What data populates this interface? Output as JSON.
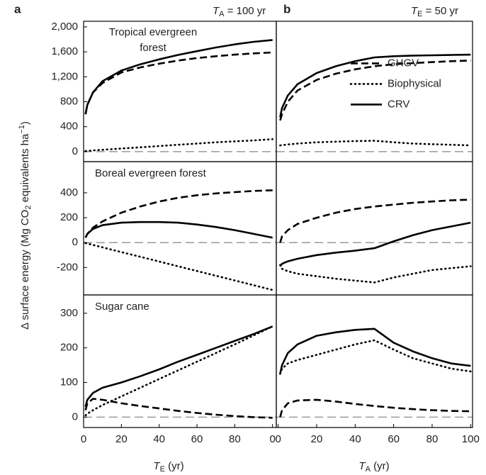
{
  "figure": {
    "panel_a": "a",
    "panel_b": "b",
    "header_a": {
      "var": "T",
      "sub": "A",
      "rest": " = 100 yr"
    },
    "header_b": {
      "var": "T",
      "sub": "E",
      "rest": " = 50 yr"
    },
    "ylabel": {
      "pre": "Δ surface energy (Mg CO",
      "sub": "2",
      "mid": " equivalents ha",
      "sup": "−1",
      "post": ")"
    },
    "xlabel_a": {
      "var": "T",
      "sub": "E",
      "rest": " (yr)"
    },
    "xlabel_b": {
      "var": "T",
      "sub": "A",
      "rest": " (yr)"
    }
  },
  "chart_data": [
    {
      "type": "line",
      "title": [
        "Tropical evergreen",
        "forest"
      ],
      "xlim": [
        0,
        102
      ],
      "ylim": [
        -160,
        2090
      ],
      "yticks": [
        0,
        400,
        800,
        {
          "value": 1200,
          "label": "1,200"
        },
        {
          "value": 1600,
          "label": "1,600"
        },
        {
          "value": 2000,
          "label": "2,000"
        }
      ],
      "x": [
        1,
        2,
        5,
        10,
        20,
        30,
        40,
        50,
        60,
        70,
        80,
        90,
        100
      ],
      "series": [
        {
          "name": "GHGV",
          "color": "#000000",
          "dash": "dashed",
          "values": [
            600,
            750,
            950,
            1100,
            1270,
            1350,
            1410,
            1460,
            1500,
            1530,
            1555,
            1575,
            1590
          ]
        },
        {
          "name": "Biophysical",
          "color": "#000000",
          "dash": "dotted",
          "values": [
            10,
            12,
            20,
            30,
            50,
            70,
            90,
            110,
            130,
            150,
            165,
            180,
            200
          ]
        },
        {
          "name": "CRV",
          "color": "#000000",
          "dash": "solid",
          "values": [
            600,
            750,
            950,
            1130,
            1300,
            1400,
            1480,
            1550,
            1610,
            1670,
            1720,
            1760,
            1790
          ]
        }
      ]
    },
    {
      "type": "line",
      "xlim": [
        -1,
        101
      ],
      "ylim": [
        -160,
        2090
      ],
      "legend": "center right",
      "x": [
        1,
        2,
        5,
        10,
        20,
        30,
        40,
        50,
        60,
        70,
        80,
        90,
        100
      ],
      "series": [
        {
          "name": "GHGV",
          "color": "#000000",
          "dash": "dashed",
          "values": [
            500,
            600,
            800,
            980,
            1150,
            1250,
            1320,
            1370,
            1400,
            1420,
            1435,
            1450,
            1460
          ]
        },
        {
          "name": "Biophysical",
          "color": "#000000",
          "dash": "dotted",
          "values": [
            100,
            105,
            115,
            130,
            150,
            160,
            170,
            175,
            150,
            130,
            120,
            110,
            100
          ]
        },
        {
          "name": "CRV",
          "color": "#000000",
          "dash": "solid",
          "values": [
            550,
            700,
            900,
            1080,
            1260,
            1370,
            1450,
            1510,
            1530,
            1540,
            1545,
            1550,
            1555
          ]
        }
      ]
    },
    {
      "type": "line",
      "title": [
        "Boreal evergreen forest"
      ],
      "xlim": [
        0,
        102
      ],
      "ylim": [
        -420,
        650
      ],
      "yticks": [
        -200,
        0,
        200,
        400
      ],
      "x": [
        1,
        2,
        5,
        10,
        20,
        30,
        40,
        50,
        60,
        70,
        80,
        90,
        100
      ],
      "series": [
        {
          "name": "GHGV",
          "color": "#000000",
          "dash": "dashed",
          "values": [
            40,
            70,
            120,
            170,
            240,
            290,
            330,
            360,
            380,
            395,
            405,
            415,
            420
          ]
        },
        {
          "name": "Biophysical",
          "color": "#000000",
          "dash": "dotted",
          "values": [
            -4,
            -8,
            -19,
            -38,
            -76,
            -114,
            -152,
            -190,
            -228,
            -266,
            -304,
            -342,
            -380
          ]
        },
        {
          "name": "CRV",
          "color": "#000000",
          "dash": "solid",
          "values": [
            40,
            70,
            110,
            140,
            160,
            165,
            165,
            160,
            145,
            125,
            100,
            70,
            40
          ]
        }
      ]
    },
    {
      "type": "line",
      "xlim": [
        -1,
        101
      ],
      "ylim": [
        -420,
        650
      ],
      "x": [
        1,
        2,
        5,
        10,
        20,
        30,
        40,
        50,
        60,
        70,
        80,
        90,
        100
      ],
      "series": [
        {
          "name": "GHGV",
          "color": "#000000",
          "dash": "dashed",
          "values": [
            0,
            50,
            100,
            150,
            200,
            240,
            270,
            290,
            305,
            320,
            330,
            340,
            345
          ]
        },
        {
          "name": "Biophysical",
          "color": "#000000",
          "dash": "dotted",
          "values": [
            -180,
            -210,
            -230,
            -250,
            -270,
            -290,
            -305,
            -320,
            -280,
            -250,
            -220,
            -205,
            -190
          ]
        },
        {
          "name": "CRV",
          "color": "#000000",
          "dash": "solid",
          "values": [
            -190,
            -170,
            -150,
            -130,
            -100,
            -80,
            -65,
            -45,
            10,
            60,
            100,
            130,
            160
          ]
        }
      ]
    },
    {
      "type": "line",
      "title": [
        "Sugar cane"
      ],
      "xlim": [
        0,
        102
      ],
      "ylim": [
        -30,
        353
      ],
      "yticks": [
        0,
        100,
        200,
        300
      ],
      "xticks": [
        0,
        20,
        40,
        60,
        80,
        {
          "value": 100,
          "label": "0"
        }
      ],
      "x": [
        1,
        2,
        5,
        10,
        20,
        30,
        40,
        50,
        60,
        70,
        80,
        90,
        100
      ],
      "series": [
        {
          "name": "GHGV",
          "color": "#000000",
          "dash": "dashed",
          "values": [
            20,
            40,
            53,
            50,
            40,
            32,
            25,
            18,
            12,
            7,
            3,
            0,
            -2
          ]
        },
        {
          "name": "Biophysical",
          "color": "#000000",
          "dash": "dotted",
          "values": [
            5,
            10,
            20,
            35,
            60,
            85,
            110,
            135,
            160,
            185,
            210,
            236,
            262
          ]
        },
        {
          "name": "CRV",
          "color": "#000000",
          "dash": "solid",
          "values": [
            30,
            50,
            70,
            85,
            100,
            118,
            138,
            160,
            180,
            200,
            220,
            240,
            262
          ]
        }
      ]
    },
    {
      "type": "line",
      "xlim": [
        -1,
        101
      ],
      "ylim": [
        -30,
        353
      ],
      "xticks": [
        0,
        20,
        40,
        60,
        80,
        100
      ],
      "x": [
        1,
        2,
        5,
        10,
        20,
        30,
        40,
        50,
        60,
        70,
        80,
        90,
        100
      ],
      "series": [
        {
          "name": "GHGV",
          "color": "#000000",
          "dash": "dashed",
          "values": [
            0,
            20,
            40,
            48,
            50,
            45,
            38,
            32,
            27,
            23,
            20,
            18,
            17
          ]
        },
        {
          "name": "Biophysical",
          "color": "#000000",
          "dash": "dotted",
          "values": [
            125,
            140,
            155,
            165,
            180,
            195,
            210,
            222,
            195,
            170,
            155,
            140,
            132
          ]
        },
        {
          "name": "CRV",
          "color": "#000000",
          "dash": "solid",
          "values": [
            125,
            150,
            185,
            210,
            235,
            245,
            252,
            255,
            215,
            190,
            170,
            155,
            148
          ]
        }
      ]
    }
  ]
}
